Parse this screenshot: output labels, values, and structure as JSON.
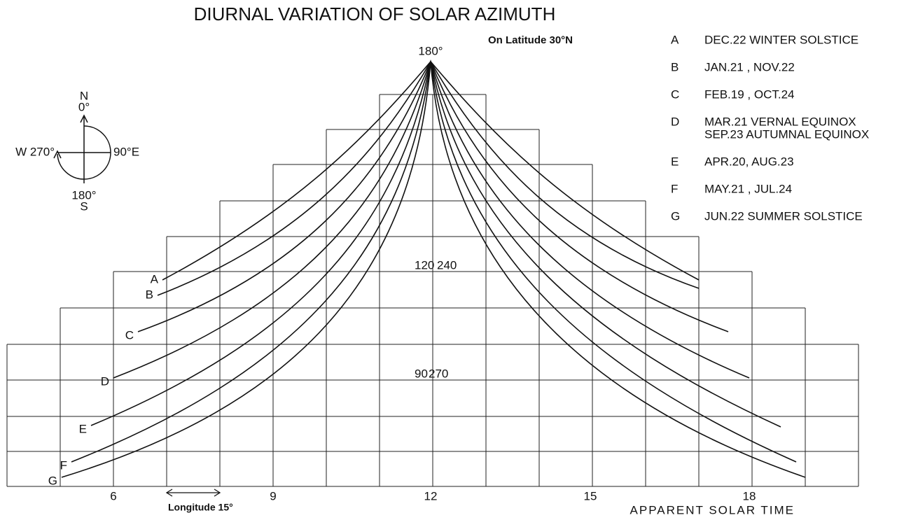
{
  "title": "DIURNAL VARIATION OF SOLAR AZIMUTH",
  "subtitle": "On Latitude 30°N",
  "legend": [
    {
      "letter": "A",
      "lines": [
        "DEC.22 WINTER SOLSTICE"
      ]
    },
    {
      "letter": "B",
      "lines": [
        "JAN.21 , NOV.22"
      ]
    },
    {
      "letter": "C",
      "lines": [
        "FEB.19 , OCT.24"
      ]
    },
    {
      "letter": "D",
      "lines": [
        "MAR.21 VERNAL EQUINOX",
        "SEP.23 AUTUMNAL EQUINOX"
      ]
    },
    {
      "letter": "E",
      "lines": [
        "APR.20, AUG.23"
      ]
    },
    {
      "letter": "F",
      "lines": [
        "MAY.21 , JUL.24"
      ]
    },
    {
      "letter": "G",
      "lines": [
        "JUN.22 SUMMER SOLSTICE"
      ]
    }
  ],
  "compass": {
    "north": "N",
    "north_deg": "0°",
    "west": "W 270°",
    "east": "90°E",
    "south_deg": "180°",
    "south": "S"
  },
  "apex_label": "180°",
  "azimuth_labels": [
    "120",
    "240",
    "90",
    "270"
  ],
  "hour_labels": [
    "6",
    "9",
    "12",
    "15",
    "18"
  ],
  "scale_note": "Longitude 15°",
  "x_axis_title": "APPARENT SOLAR TIME"
}
